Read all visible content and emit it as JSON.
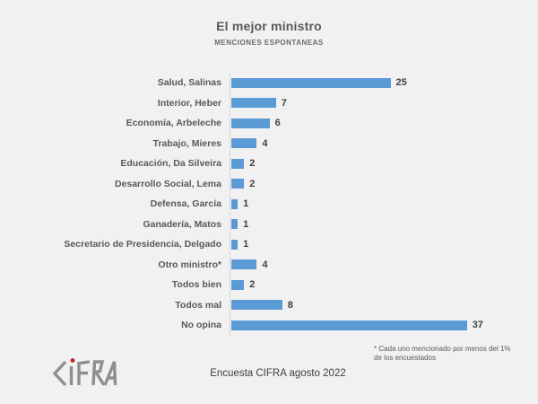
{
  "slide": {
    "title": "El mejor ministro",
    "subtitle": "MENCIONES ESPONTANEAS",
    "footnote": "* Cada uno mencionado por menos del 1% de los encuestados",
    "source": "Encuesta CIFRA agosto 2022",
    "logo_text": "CIFRA"
  },
  "chart_data": {
    "type": "bar",
    "orientation": "horizontal",
    "title": "El mejor ministro",
    "subtitle": "MENCIONES ESPONTANEAS",
    "categories": [
      "Salud, Salinas",
      "Interior, Heber",
      "Economía, Arbeleche",
      "Trabajo, Mieres",
      "Educación, Da Silveira",
      "Desarrollo Social, Lema",
      "Defensa, García",
      "Ganadería, Matos",
      "Secretario de Presidencia, Delgado",
      "Otro ministro*",
      "Todos bien",
      "Todos mal",
      "No opina"
    ],
    "values": [
      25,
      7,
      6,
      4,
      2,
      2,
      1,
      1,
      1,
      4,
      2,
      8,
      37
    ],
    "xlabel": "",
    "ylabel": "",
    "xlim": [
      0,
      40
    ],
    "grid": false,
    "legend": false,
    "data_labels": true,
    "bar_color": "#5b9bd5",
    "annotation": "* Cada uno mencionado por menos del 1% de los encuestados"
  }
}
